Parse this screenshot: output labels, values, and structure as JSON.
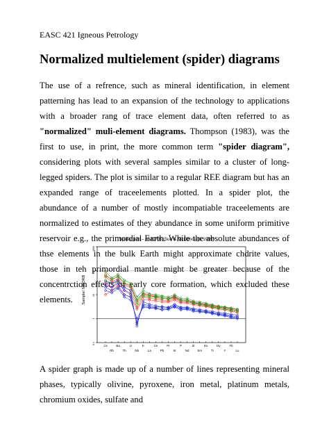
{
  "header": {
    "course": "EASC 421 Igneous Petrology"
  },
  "heading": "Normalized multielement (spider) diagrams",
  "paragraph1": {
    "t1": "The use of a refrence, such as mineral identification, in element patterning has lead to an expansion of the technology to applications with a broader rang of trace element data, often referred to as ",
    "b1": "\"normalized\" muli-element diagrams.",
    "t2": " Thompson (1983), was the first to use, in print, the more common term ",
    "b2": "\"spider diagram\",",
    "t3": " considering plots with several samples similar to a cluster of long-legged spiders. The plot is similar to a regular REE diagram but has an expanded range of traceelements plotted. In a spider plot, the abundance of a number of mostly incompatiable traceelements are normalized to estimates of they abundance in some uniform primitive reservoir e.g., the primordial Earth. While the absolute abundances of thse elements in the bulk Earth might approximate chdrite values, those in teh primordial mantle might be greater because of the concentrction effects of early core formation, which excluded these elements."
  },
  "paragraph2": "A spider graph is made up of a number of lines representing mineral phases, typically olivine, pyroxene, iron metal, platinum metals, chromium oxides, sulfate and",
  "chart_data": {
    "type": "line",
    "title": "Spider plot – NMORB (Sun & McDonough 1989)",
    "ylabel": "Sample/ NMORB",
    "xlabel": "",
    "y_scale": "log",
    "ylim": [
      0.1,
      1000
    ],
    "y_ticks": [
      "1000",
      "100",
      "10",
      "1",
      "0.1"
    ],
    "categories": [
      "Cs",
      "Rb",
      "Ba",
      "Th",
      "U",
      "Nb",
      "K",
      "La",
      "Ce",
      "Pb",
      "Pr",
      "Sr",
      "P",
      "Nd",
      "Zr",
      "Sm",
      "Eu",
      "Ti",
      "Dy",
      "Y",
      "Yb",
      "Lu"
    ],
    "x_labels_top": [
      "Cs",
      "Ba",
      "U",
      "K",
      "Ce",
      "Pr",
      "P",
      "Zr",
      "Eu",
      "Dy",
      "Yb"
    ],
    "x_labels_bottom": [
      "Rb",
      "Th",
      "Nb",
      "La",
      "Pb",
      "Sr",
      "Nd",
      "Sm",
      "Ti",
      "Y",
      "Lu"
    ],
    "grid_lines_y": [
      1,
      100
    ],
    "series": [
      {
        "color": "#ff1a1a",
        "values": [
          70,
          40,
          60,
          30,
          25,
          6,
          12,
          10,
          9,
          8,
          7,
          9,
          6,
          6,
          5,
          4.5,
          4,
          3.6,
          3.2,
          3.0,
          2.6,
          2.4
        ]
      },
      {
        "color": "#ff1a1a",
        "values": [
          55,
          35,
          45,
          25,
          20,
          5,
          10,
          9,
          8,
          7,
          6.5,
          8,
          5.5,
          5.5,
          4.6,
          4.2,
          3.8,
          3.3,
          3.0,
          2.8,
          2.4,
          2.2
        ]
      },
      {
        "color": "#ff1a1a",
        "values": [
          30,
          20,
          40,
          15,
          12,
          3,
          8,
          7,
          6.5,
          6,
          5.5,
          7,
          5,
          5,
          4.2,
          3.8,
          3.4,
          3.0,
          2.7,
          2.5,
          2.2,
          2.0
        ]
      },
      {
        "color": "#ff1a1a",
        "values": [
          10,
          15,
          25,
          10,
          8,
          2.5,
          6,
          6,
          5.5,
          5,
          5,
          6,
          4.5,
          4.5,
          3.8,
          3.5,
          3.2,
          2.8,
          2.5,
          2.3,
          2.0,
          1.8
        ]
      },
      {
        "color": "#1aa01a",
        "values": [
          90,
          50,
          70,
          40,
          30,
          8,
          15,
          11,
          10,
          9,
          8,
          10,
          7,
          7,
          5.5,
          5,
          4.4,
          3.8,
          3.4,
          3.1,
          2.8,
          2.5
        ]
      },
      {
        "color": "#1aa01a",
        "values": [
          60,
          45,
          55,
          30,
          22,
          6,
          11,
          9,
          8.5,
          8,
          7,
          8.5,
          6,
          6,
          4.8,
          4.3,
          3.9,
          3.4,
          3.0,
          2.7,
          2.4,
          2.2
        ]
      },
      {
        "color": "#1aa01a",
        "values": [
          40,
          30,
          35,
          20,
          15,
          4,
          9,
          8,
          7.5,
          7,
          6.5,
          7.5,
          5.5,
          5.5,
          4.4,
          4.0,
          3.6,
          3.1,
          2.8,
          2.5,
          2.2,
          2.0
        ]
      },
      {
        "color": "#1a2ad8",
        "values": [
          35,
          30,
          40,
          20,
          15,
          0.5,
          5,
          4,
          3.5,
          3,
          3,
          4,
          3,
          3,
          2.6,
          2.4,
          2.2,
          2.0,
          1.8,
          1.7,
          1.5,
          1.4
        ]
      },
      {
        "color": "#1a2ad8",
        "values": [
          25,
          20,
          30,
          15,
          10,
          0.6,
          4,
          3.5,
          3,
          3.2,
          2.8,
          3.5,
          2.8,
          2.8,
          2.4,
          2.2,
          2.0,
          1.8,
          1.6,
          1.5,
          1.3,
          1.2
        ]
      },
      {
        "color": "#1a2ad8",
        "values": [
          20,
          15,
          20,
          10,
          8,
          0.7,
          3.5,
          3,
          2.8,
          2.5,
          2.6,
          3.2,
          2.5,
          2.6,
          2.2,
          2.0,
          1.9,
          1.7,
          1.5,
          1.4,
          1.2,
          1.1
        ]
      },
      {
        "color": "#1a2ad8",
        "values": [
          15,
          12,
          18,
          8,
          6,
          1.0,
          3,
          2.8,
          2.6,
          2.3,
          2.4,
          3.0,
          2.3,
          2.4,
          2.0,
          1.9,
          1.8,
          1.6,
          1.4,
          1.3,
          1.1,
          1.0
        ]
      }
    ]
  }
}
